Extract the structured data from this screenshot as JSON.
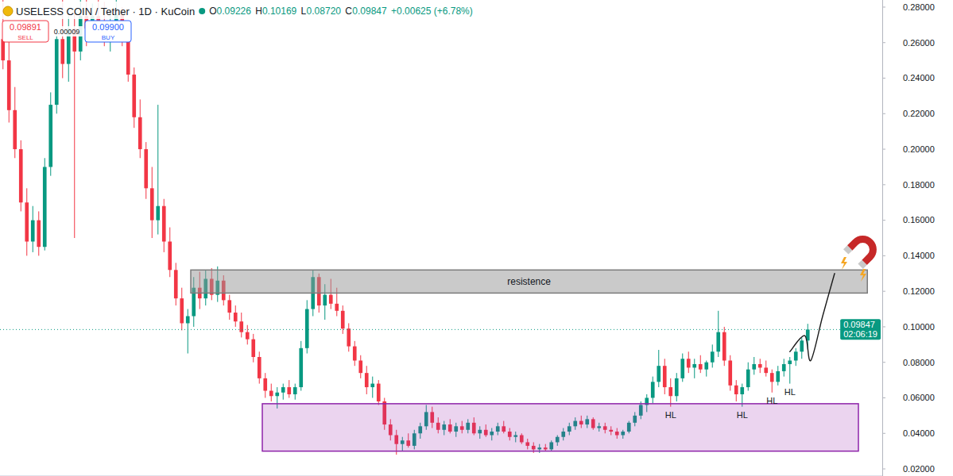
{
  "chart_data": {
    "type": "candlestick",
    "title": "USELESS COIN / Tether · 1D · KuCoin",
    "header": {
      "ohlc": [
        {
          "key": "O",
          "value": "0.09226"
        },
        {
          "key": "H",
          "value": "0.10169"
        },
        {
          "key": "L",
          "value": "0.08720"
        },
        {
          "key": "C",
          "value": "0.09847"
        }
      ],
      "change": "+0.00625 (+6.78%)"
    },
    "quote": {
      "sell": "0.09891",
      "sell_label": "SELL",
      "spread": "0.00009",
      "buy": "0.09900",
      "buy_label": "BUY"
    },
    "last_price": {
      "label": "0.09847",
      "countdown": "02:06:19"
    },
    "xlim": [
      -0.5,
      147.5
    ],
    "ylim": [
      0.016,
      0.284
    ],
    "yticks": [
      {
        "value": 0.02,
        "label": "0.02000"
      },
      {
        "value": 0.04,
        "label": "0.04000"
      },
      {
        "value": 0.06,
        "label": "0.06000"
      },
      {
        "value": 0.08,
        "label": "0.08000"
      },
      {
        "value": 0.1,
        "label": "0.10000"
      },
      {
        "value": 0.12,
        "label": "0.12000"
      },
      {
        "value": 0.14,
        "label": "0.14000"
      },
      {
        "value": 0.16,
        "label": "0.16000"
      },
      {
        "value": 0.18,
        "label": "0.18000"
      },
      {
        "value": 0.2,
        "label": "0.20000"
      },
      {
        "value": 0.22,
        "label": "0.22000"
      },
      {
        "value": 0.24,
        "label": "0.24000"
      },
      {
        "value": 0.26,
        "label": "0.26000"
      },
      {
        "value": 0.28,
        "label": "0.28000"
      }
    ],
    "grid": false,
    "tick_labels": "y",
    "open": [
      0.262,
      0.25,
      0.222,
      0.2,
      0.17,
      0.148,
      0.16,
      0.145,
      0.19,
      0.225,
      0.262,
      0.248,
      0.268,
      0.255,
      0.275,
      0.268,
      0.275,
      0.27,
      0.262,
      0.272,
      0.276,
      0.262,
      0.242,
      0.218,
      0.2,
      0.178,
      0.16,
      0.168,
      0.148,
      0.132,
      0.116,
      0.102,
      0.106,
      0.122,
      0.116,
      0.127,
      0.118,
      0.126,
      0.115,
      0.108,
      0.103,
      0.097,
      0.093,
      0.083,
      0.071,
      0.064,
      0.061,
      0.063,
      0.066,
      0.062,
      0.066,
      0.088,
      0.11,
      0.128,
      0.112,
      0.118,
      0.113,
      0.109,
      0.099,
      0.089,
      0.081,
      0.074,
      0.066,
      0.068,
      0.058,
      0.045,
      0.039,
      0.034,
      0.036,
      0.033,
      0.04,
      0.044,
      0.052,
      0.046,
      0.042,
      0.045,
      0.041,
      0.044,
      0.042,
      0.046,
      0.04,
      0.042,
      0.039,
      0.041,
      0.044,
      0.041,
      0.038,
      0.039,
      0.035,
      0.033,
      0.031,
      0.032,
      0.031,
      0.035,
      0.038,
      0.041,
      0.044,
      0.047,
      0.045,
      0.048,
      0.043,
      0.044,
      0.042,
      0.041,
      0.039,
      0.041,
      0.046,
      0.05,
      0.056,
      0.06,
      0.069,
      0.078,
      0.066,
      0.061,
      0.071,
      0.082,
      0.077,
      0.079,
      0.076,
      0.08,
      0.086,
      0.097,
      0.081,
      0.067,
      0.062,
      0.066,
      0.076,
      0.079,
      0.077,
      0.074,
      0.069,
      0.075,
      0.079,
      0.081,
      0.086,
      0.09226
    ],
    "high": [
      0.285,
      0.268,
      0.235,
      0.205,
      0.178,
      0.168,
      0.165,
      0.195,
      0.232,
      0.268,
      0.285,
      0.275,
      0.278,
      0.29,
      0.285,
      0.282,
      0.288,
      0.283,
      0.278,
      0.286,
      0.28,
      0.266,
      0.246,
      0.228,
      0.204,
      0.19,
      0.225,
      0.172,
      0.156,
      0.136,
      0.122,
      0.11,
      0.128,
      0.131,
      0.132,
      0.133,
      0.134,
      0.129,
      0.118,
      0.112,
      0.108,
      0.101,
      0.096,
      0.086,
      0.074,
      0.068,
      0.066,
      0.068,
      0.07,
      0.068,
      0.092,
      0.115,
      0.132,
      0.13,
      0.124,
      0.127,
      0.122,
      0.112,
      0.102,
      0.092,
      0.084,
      0.078,
      0.072,
      0.07,
      0.06,
      0.048,
      0.042,
      0.038,
      0.04,
      0.042,
      0.046,
      0.056,
      0.055,
      0.049,
      0.047,
      0.048,
      0.046,
      0.047,
      0.048,
      0.049,
      0.044,
      0.045,
      0.043,
      0.046,
      0.047,
      0.043,
      0.041,
      0.04,
      0.037,
      0.035,
      0.034,
      0.034,
      0.036,
      0.039,
      0.043,
      0.046,
      0.049,
      0.05,
      0.05,
      0.049,
      0.046,
      0.046,
      0.044,
      0.043,
      0.042,
      0.047,
      0.052,
      0.058,
      0.062,
      0.072,
      0.087,
      0.082,
      0.071,
      0.074,
      0.085,
      0.086,
      0.082,
      0.084,
      0.081,
      0.09,
      0.109,
      0.1,
      0.084,
      0.07,
      0.068,
      0.08,
      0.083,
      0.082,
      0.081,
      0.076,
      0.078,
      0.082,
      0.083,
      0.088,
      0.094,
      0.10169
    ],
    "low": [
      0.245,
      0.215,
      0.195,
      0.165,
      0.14,
      0.142,
      0.14,
      0.143,
      0.185,
      0.22,
      0.24,
      0.238,
      0.15,
      0.25,
      0.258,
      0.262,
      0.265,
      0.258,
      0.255,
      0.266,
      0.258,
      0.238,
      0.212,
      0.195,
      0.172,
      0.15,
      0.152,
      0.142,
      0.128,
      0.112,
      0.098,
      0.085,
      0.1,
      0.11,
      0.112,
      0.115,
      0.114,
      0.112,
      0.104,
      0.1,
      0.094,
      0.09,
      0.08,
      0.068,
      0.06,
      0.058,
      0.054,
      0.059,
      0.06,
      0.059,
      0.064,
      0.085,
      0.106,
      0.108,
      0.104,
      0.11,
      0.106,
      0.096,
      0.086,
      0.078,
      0.071,
      0.062,
      0.06,
      0.056,
      0.042,
      0.036,
      0.028,
      0.03,
      0.032,
      0.031,
      0.037,
      0.042,
      0.043,
      0.04,
      0.039,
      0.04,
      0.038,
      0.04,
      0.04,
      0.039,
      0.037,
      0.038,
      0.036,
      0.039,
      0.04,
      0.036,
      0.035,
      0.034,
      0.031,
      0.029,
      0.029,
      0.03,
      0.03,
      0.033,
      0.036,
      0.039,
      0.042,
      0.043,
      0.043,
      0.042,
      0.041,
      0.04,
      0.039,
      0.037,
      0.037,
      0.04,
      0.044,
      0.048,
      0.052,
      0.057,
      0.066,
      0.062,
      0.055,
      0.058,
      0.069,
      0.074,
      0.071,
      0.074,
      0.072,
      0.077,
      0.083,
      0.078,
      0.064,
      0.058,
      0.055,
      0.064,
      0.073,
      0.074,
      0.072,
      0.063,
      0.067,
      0.072,
      0.068,
      0.078,
      0.082,
      0.0872
    ],
    "close": [
      0.25,
      0.222,
      0.2,
      0.17,
      0.148,
      0.16,
      0.145,
      0.19,
      0.225,
      0.262,
      0.248,
      0.268,
      0.255,
      0.275,
      0.268,
      0.275,
      0.27,
      0.262,
      0.272,
      0.276,
      0.262,
      0.242,
      0.218,
      0.2,
      0.178,
      0.16,
      0.168,
      0.148,
      0.132,
      0.116,
      0.102,
      0.106,
      0.122,
      0.116,
      0.127,
      0.118,
      0.126,
      0.115,
      0.108,
      0.103,
      0.097,
      0.093,
      0.083,
      0.071,
      0.064,
      0.061,
      0.063,
      0.066,
      0.062,
      0.066,
      0.088,
      0.11,
      0.128,
      0.112,
      0.118,
      0.113,
      0.109,
      0.099,
      0.089,
      0.081,
      0.074,
      0.066,
      0.068,
      0.058,
      0.045,
      0.039,
      0.034,
      0.036,
      0.033,
      0.04,
      0.044,
      0.052,
      0.046,
      0.042,
      0.045,
      0.041,
      0.044,
      0.042,
      0.046,
      0.04,
      0.042,
      0.039,
      0.041,
      0.044,
      0.041,
      0.038,
      0.039,
      0.035,
      0.033,
      0.031,
      0.032,
      0.031,
      0.035,
      0.038,
      0.041,
      0.044,
      0.047,
      0.045,
      0.048,
      0.043,
      0.044,
      0.042,
      0.041,
      0.039,
      0.041,
      0.046,
      0.05,
      0.056,
      0.06,
      0.069,
      0.078,
      0.066,
      0.061,
      0.071,
      0.082,
      0.077,
      0.079,
      0.076,
      0.08,
      0.086,
      0.097,
      0.081,
      0.067,
      0.062,
      0.066,
      0.076,
      0.079,
      0.077,
      0.074,
      0.069,
      0.075,
      0.079,
      0.081,
      0.086,
      0.09226,
      0.09847
    ],
    "zones": [
      {
        "label": "resistence",
        "low": 0.119,
        "high": 0.132,
        "start": 31.5,
        "end": 145
      },
      {
        "low": 0.03,
        "high": 0.0567,
        "start": 43.5,
        "end": 143.5
      }
    ],
    "annotations": [
      {
        "text": "HL",
        "index": 112
      },
      {
        "text": "HL",
        "index": 124
      },
      {
        "text": "HL",
        "index": 129
      },
      {
        "text": "HL",
        "index": 132
      }
    ],
    "projection": {
      "x": [
        132,
        134.5,
        135.5,
        137.5,
        139.5
      ],
      "y": [
        0.086,
        0.095,
        0.081,
        0.106,
        0.13
      ]
    }
  }
}
